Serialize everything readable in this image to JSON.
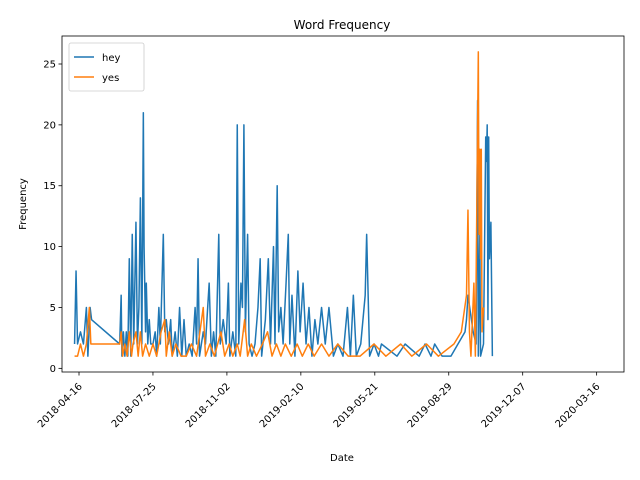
{
  "chart_data": {
    "type": "line",
    "title": "Word Frequency",
    "xlabel": "Date",
    "ylabel": "Frequency",
    "xlim": [
      "2018-03-24",
      "2020-04-22"
    ],
    "ylim": [
      -0.3,
      27.3
    ],
    "x_ticks": [
      "2018-04-16",
      "2018-07-25",
      "2018-11-02",
      "2019-02-10",
      "2019-05-21",
      "2019-08-29",
      "2019-12-07",
      "2020-03-16"
    ],
    "y_ticks": [
      0,
      5,
      10,
      15,
      20,
      25
    ],
    "grid": false,
    "legend_position": "top-left",
    "series": [
      {
        "name": "hey",
        "color": "#1f77b4",
        "points": [
          [
            "2018-04-10",
            2
          ],
          [
            "2018-04-12",
            8
          ],
          [
            "2018-04-14",
            2
          ],
          [
            "2018-04-18",
            3
          ],
          [
            "2018-04-22",
            2
          ],
          [
            "2018-04-26",
            5
          ],
          [
            "2018-04-28",
            1
          ],
          [
            "2018-05-01",
            5
          ],
          [
            "2018-05-03",
            4
          ],
          [
            "2018-06-10",
            2
          ],
          [
            "2018-06-12",
            6
          ],
          [
            "2018-06-13",
            1
          ],
          [
            "2018-06-15",
            3
          ],
          [
            "2018-06-17",
            1
          ],
          [
            "2018-06-19",
            3
          ],
          [
            "2018-06-21",
            1
          ],
          [
            "2018-06-23",
            9
          ],
          [
            "2018-06-25",
            1
          ],
          [
            "2018-06-27",
            11
          ],
          [
            "2018-06-29",
            2
          ],
          [
            "2018-07-02",
            12
          ],
          [
            "2018-07-04",
            2
          ],
          [
            "2018-07-06",
            5
          ],
          [
            "2018-07-08",
            14
          ],
          [
            "2018-07-10",
            2
          ],
          [
            "2018-07-12",
            21
          ],
          [
            "2018-07-13",
            10
          ],
          [
            "2018-07-15",
            3
          ],
          [
            "2018-07-16",
            7
          ],
          [
            "2018-07-18",
            2
          ],
          [
            "2018-07-20",
            4
          ],
          [
            "2018-07-22",
            2
          ],
          [
            "2018-07-25",
            2
          ],
          [
            "2018-07-28",
            3
          ],
          [
            "2018-07-30",
            1
          ],
          [
            "2018-08-02",
            5
          ],
          [
            "2018-08-04",
            2
          ],
          [
            "2018-08-08",
            11
          ],
          [
            "2018-08-10",
            3
          ],
          [
            "2018-08-12",
            4
          ],
          [
            "2018-08-15",
            2
          ],
          [
            "2018-08-18",
            4
          ],
          [
            "2018-08-20",
            1
          ],
          [
            "2018-08-24",
            3
          ],
          [
            "2018-08-27",
            1
          ],
          [
            "2018-08-30",
            5
          ],
          [
            "2018-09-02",
            1
          ],
          [
            "2018-09-05",
            4
          ],
          [
            "2018-09-08",
            1
          ],
          [
            "2018-09-12",
            2
          ],
          [
            "2018-09-16",
            1
          ],
          [
            "2018-09-20",
            5
          ],
          [
            "2018-09-22",
            2
          ],
          [
            "2018-09-24",
            9
          ],
          [
            "2018-09-26",
            1
          ],
          [
            "2018-10-01",
            3
          ],
          [
            "2018-10-04",
            2
          ],
          [
            "2018-10-07",
            5
          ],
          [
            "2018-10-09",
            7
          ],
          [
            "2018-10-12",
            1
          ],
          [
            "2018-10-15",
            3
          ],
          [
            "2018-10-18",
            1
          ],
          [
            "2018-10-22",
            11
          ],
          [
            "2018-10-24",
            2
          ],
          [
            "2018-10-28",
            4
          ],
          [
            "2018-11-01",
            2
          ],
          [
            "2018-11-04",
            7
          ],
          [
            "2018-11-06",
            1
          ],
          [
            "2018-11-10",
            3
          ],
          [
            "2018-11-14",
            1
          ],
          [
            "2018-11-16",
            20
          ],
          [
            "2018-11-18",
            2
          ],
          [
            "2018-11-21",
            7
          ],
          [
            "2018-11-23",
            5
          ],
          [
            "2018-11-25",
            20
          ],
          [
            "2018-11-27",
            3
          ],
          [
            "2018-11-30",
            11
          ],
          [
            "2018-12-02",
            2
          ],
          [
            "2018-12-06",
            1
          ],
          [
            "2018-12-10",
            2
          ],
          [
            "2018-12-14",
            5
          ],
          [
            "2018-12-17",
            9
          ],
          [
            "2018-12-19",
            1
          ],
          [
            "2018-12-24",
            4
          ],
          [
            "2018-12-28",
            9
          ],
          [
            "2018-12-31",
            2
          ],
          [
            "2019-01-04",
            10
          ],
          [
            "2019-01-06",
            2
          ],
          [
            "2019-01-09",
            15
          ],
          [
            "2019-01-11",
            3
          ],
          [
            "2019-01-14",
            5
          ],
          [
            "2019-01-17",
            2
          ],
          [
            "2019-01-21",
            7
          ],
          [
            "2019-01-24",
            11
          ],
          [
            "2019-01-26",
            2
          ],
          [
            "2019-01-29",
            6
          ],
          [
            "2019-02-02",
            1
          ],
          [
            "2019-02-06",
            8
          ],
          [
            "2019-02-09",
            3
          ],
          [
            "2019-02-13",
            7
          ],
          [
            "2019-02-17",
            2
          ],
          [
            "2019-02-21",
            5
          ],
          [
            "2019-02-25",
            1
          ],
          [
            "2019-03-01",
            4
          ],
          [
            "2019-03-05",
            2
          ],
          [
            "2019-03-10",
            5
          ],
          [
            "2019-03-15",
            2
          ],
          [
            "2019-03-20",
            5
          ],
          [
            "2019-03-26",
            1
          ],
          [
            "2019-04-01",
            2
          ],
          [
            "2019-04-08",
            1
          ],
          [
            "2019-04-14",
            5
          ],
          [
            "2019-04-18",
            1
          ],
          [
            "2019-04-22",
            6
          ],
          [
            "2019-04-26",
            1
          ],
          [
            "2019-05-02",
            2
          ],
          [
            "2019-05-08",
            6
          ],
          [
            "2019-05-10",
            11
          ],
          [
            "2019-05-14",
            1
          ],
          [
            "2019-05-20",
            2
          ],
          [
            "2019-05-26",
            1
          ],
          [
            "2019-05-30",
            2
          ],
          [
            "2019-06-20",
            1
          ],
          [
            "2019-07-01",
            2
          ],
          [
            "2019-07-20",
            1
          ],
          [
            "2019-07-28",
            2
          ],
          [
            "2019-08-05",
            1
          ],
          [
            "2019-08-10",
            2
          ],
          [
            "2019-08-20",
            1
          ],
          [
            "2019-09-01",
            1
          ],
          [
            "2019-09-20",
            3
          ],
          [
            "2019-09-22",
            4
          ],
          [
            "2019-09-24",
            6
          ],
          [
            "2019-10-01",
            3
          ],
          [
            "2019-10-05",
            2
          ],
          [
            "2019-10-07",
            22
          ],
          [
            "2019-10-08",
            1
          ],
          [
            "2019-10-10",
            11
          ],
          [
            "2019-10-11",
            1
          ],
          [
            "2019-10-15",
            2
          ],
          [
            "2019-10-18",
            19
          ],
          [
            "2019-10-19",
            17
          ],
          [
            "2019-10-20",
            20
          ],
          [
            "2019-10-21",
            4
          ],
          [
            "2019-10-22",
            19
          ],
          [
            "2019-10-23",
            9
          ],
          [
            "2019-10-25",
            12
          ],
          [
            "2019-10-27",
            1
          ]
        ]
      },
      {
        "name": "yes",
        "color": "#ff7f0e",
        "points": [
          [
            "2018-04-10",
            1
          ],
          [
            "2018-04-14",
            1
          ],
          [
            "2018-04-18",
            2
          ],
          [
            "2018-04-22",
            1
          ],
          [
            "2018-04-26",
            2
          ],
          [
            "2018-04-30",
            5
          ],
          [
            "2018-05-02",
            2
          ],
          [
            "2018-06-10",
            2
          ],
          [
            "2018-06-12",
            3
          ],
          [
            "2018-06-14",
            1
          ],
          [
            "2018-06-17",
            2
          ],
          [
            "2018-06-20",
            1
          ],
          [
            "2018-06-23",
            3
          ],
          [
            "2018-06-26",
            1
          ],
          [
            "2018-06-28",
            2
          ],
          [
            "2018-07-02",
            3
          ],
          [
            "2018-07-05",
            1
          ],
          [
            "2018-07-08",
            3
          ],
          [
            "2018-07-11",
            1
          ],
          [
            "2018-07-15",
            2
          ],
          [
            "2018-07-20",
            1
          ],
          [
            "2018-07-25",
            2
          ],
          [
            "2018-07-30",
            1
          ],
          [
            "2018-08-05",
            3
          ],
          [
            "2018-08-10",
            4
          ],
          [
            "2018-08-12",
            1
          ],
          [
            "2018-08-16",
            3
          ],
          [
            "2018-08-20",
            1
          ],
          [
            "2018-08-25",
            2
          ],
          [
            "2018-09-01",
            1
          ],
          [
            "2018-09-08",
            1
          ],
          [
            "2018-09-15",
            2
          ],
          [
            "2018-09-22",
            1
          ],
          [
            "2018-10-01",
            5
          ],
          [
            "2018-10-04",
            1
          ],
          [
            "2018-10-10",
            2
          ],
          [
            "2018-10-16",
            1
          ],
          [
            "2018-10-25",
            3
          ],
          [
            "2018-10-30",
            1
          ],
          [
            "2018-11-05",
            2
          ],
          [
            "2018-11-10",
            1
          ],
          [
            "2018-11-16",
            2
          ],
          [
            "2018-11-20",
            1
          ],
          [
            "2018-11-26",
            4
          ],
          [
            "2018-11-30",
            1
          ],
          [
            "2018-12-05",
            2
          ],
          [
            "2018-12-12",
            1
          ],
          [
            "2018-12-20",
            2
          ],
          [
            "2018-12-27",
            3
          ],
          [
            "2019-01-02",
            1
          ],
          [
            "2019-01-08",
            2
          ],
          [
            "2019-01-14",
            1
          ],
          [
            "2019-01-20",
            2
          ],
          [
            "2019-01-28",
            1
          ],
          [
            "2019-02-05",
            2
          ],
          [
            "2019-02-12",
            1
          ],
          [
            "2019-02-20",
            2
          ],
          [
            "2019-02-28",
            1
          ],
          [
            "2019-03-10",
            2
          ],
          [
            "2019-03-20",
            1
          ],
          [
            "2019-04-01",
            2
          ],
          [
            "2019-04-15",
            1
          ],
          [
            "2019-05-01",
            1
          ],
          [
            "2019-05-20",
            2
          ],
          [
            "2019-06-05",
            1
          ],
          [
            "2019-06-25",
            2
          ],
          [
            "2019-07-10",
            1
          ],
          [
            "2019-07-30",
            2
          ],
          [
            "2019-08-15",
            1
          ],
          [
            "2019-09-05",
            2
          ],
          [
            "2019-09-15",
            3
          ],
          [
            "2019-09-22",
            6
          ],
          [
            "2019-09-24",
            13
          ],
          [
            "2019-09-26",
            3
          ],
          [
            "2019-09-28",
            1
          ],
          [
            "2019-10-02",
            7
          ],
          [
            "2019-10-04",
            1
          ],
          [
            "2019-10-08",
            26
          ],
          [
            "2019-10-09",
            11
          ],
          [
            "2019-10-10",
            18
          ],
          [
            "2019-10-11",
            9
          ],
          [
            "2019-10-12",
            18
          ],
          [
            "2019-10-13",
            3
          ],
          [
            "2019-10-15",
            5
          ]
        ]
      }
    ]
  }
}
